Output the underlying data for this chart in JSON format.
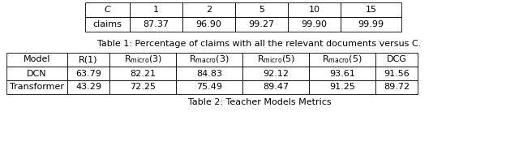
{
  "table1": {
    "header": [
      "C",
      "1",
      "2",
      "5",
      "10",
      "15"
    ],
    "rows": [
      [
        "claims",
        "87.37",
        "96.90",
        "99.27",
        "99.90",
        "99.99"
      ]
    ],
    "caption": "Table 1: Percentage of claims with all the relevant documents versus C."
  },
  "table2": {
    "header_display": [
      "Model",
      "R(1)",
      "R$_{\\mathrm{micro}}$(3)",
      "R$_{\\mathrm{macro}}$(3)",
      "R$_{\\mathrm{micro}}$(5)",
      "R$_{\\mathrm{macro}}$(5)",
      "DCG"
    ],
    "rows": [
      [
        "DCN",
        "63.79",
        "82.21",
        "84.83",
        "92.12",
        "93.61",
        "91.56"
      ],
      [
        "Transformer",
        "43.29",
        "72.25",
        "75.49",
        "89.47",
        "91.25",
        "89.72"
      ]
    ],
    "caption": "Table 2: Teacher Models Metrics"
  },
  "bg_color": "#ffffff",
  "font_size": 8,
  "caption_font_size": 8
}
